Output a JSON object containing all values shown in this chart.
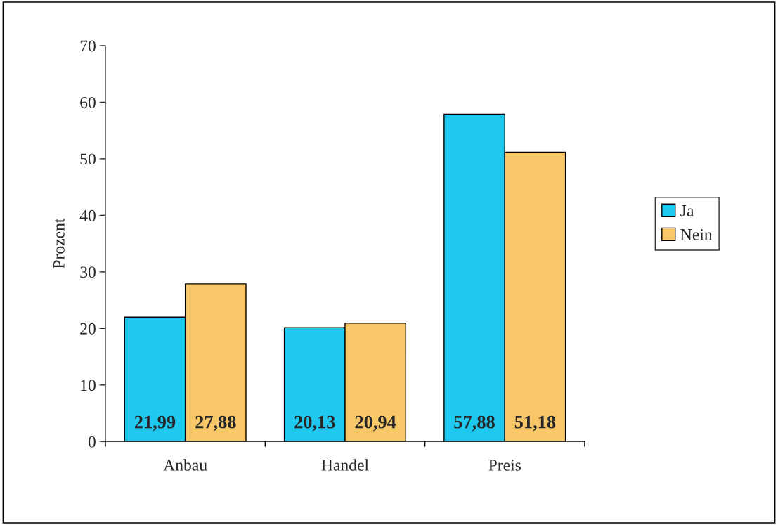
{
  "chart_data": {
    "type": "bar",
    "ylabel": "Prozent",
    "categories": [
      "Anbau",
      "Handel",
      "Preis"
    ],
    "series": [
      {
        "name": "Ja",
        "color": "#1ec8ee",
        "values": [
          21.99,
          20.13,
          57.88
        ],
        "value_labels": [
          "21,99",
          "20,13",
          "57,88"
        ]
      },
      {
        "name": "Nein",
        "color": "#f8c868",
        "values": [
          27.88,
          20.94,
          51.18
        ],
        "value_labels": [
          "27,88",
          "20,94",
          "51,18"
        ]
      }
    ],
    "ylim": [
      0,
      70
    ],
    "yticks": [
      0,
      10,
      20,
      30,
      40,
      50,
      60,
      70
    ],
    "grid": false,
    "legend": "right"
  }
}
